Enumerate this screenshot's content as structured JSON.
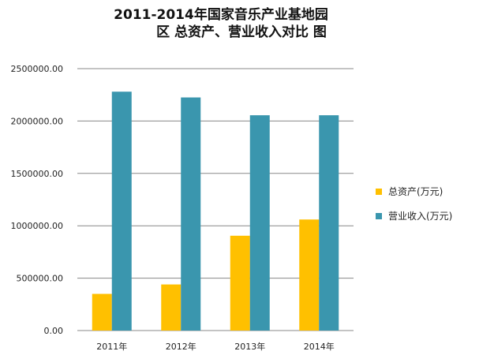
{
  "chart_data": {
    "type": "bar",
    "title_lines": [
      "2011-2014年国家音乐产业基地园",
      "区 总资产、营业收入对比  图"
    ],
    "categories": [
      "2011年",
      "2012年",
      "2013年",
      "2014年"
    ],
    "series": [
      {
        "name": "总资产(万元)",
        "color": "#FFC000",
        "values": [
          350000,
          440000,
          905000,
          1060000
        ]
      },
      {
        "name": "营业收入(万元)",
        "color": "#3A96AE",
        "values": [
          2280000,
          2225000,
          2055000,
          2055000
        ]
      }
    ],
    "y_ticks": [
      "0.00",
      "500000.00",
      "1000000.00",
      "1500000.00",
      "2000000.00",
      "2500000.00"
    ],
    "ylim": [
      0,
      2500000
    ],
    "grid": true,
    "legend_position": "right",
    "gridline_color": "#888888"
  }
}
